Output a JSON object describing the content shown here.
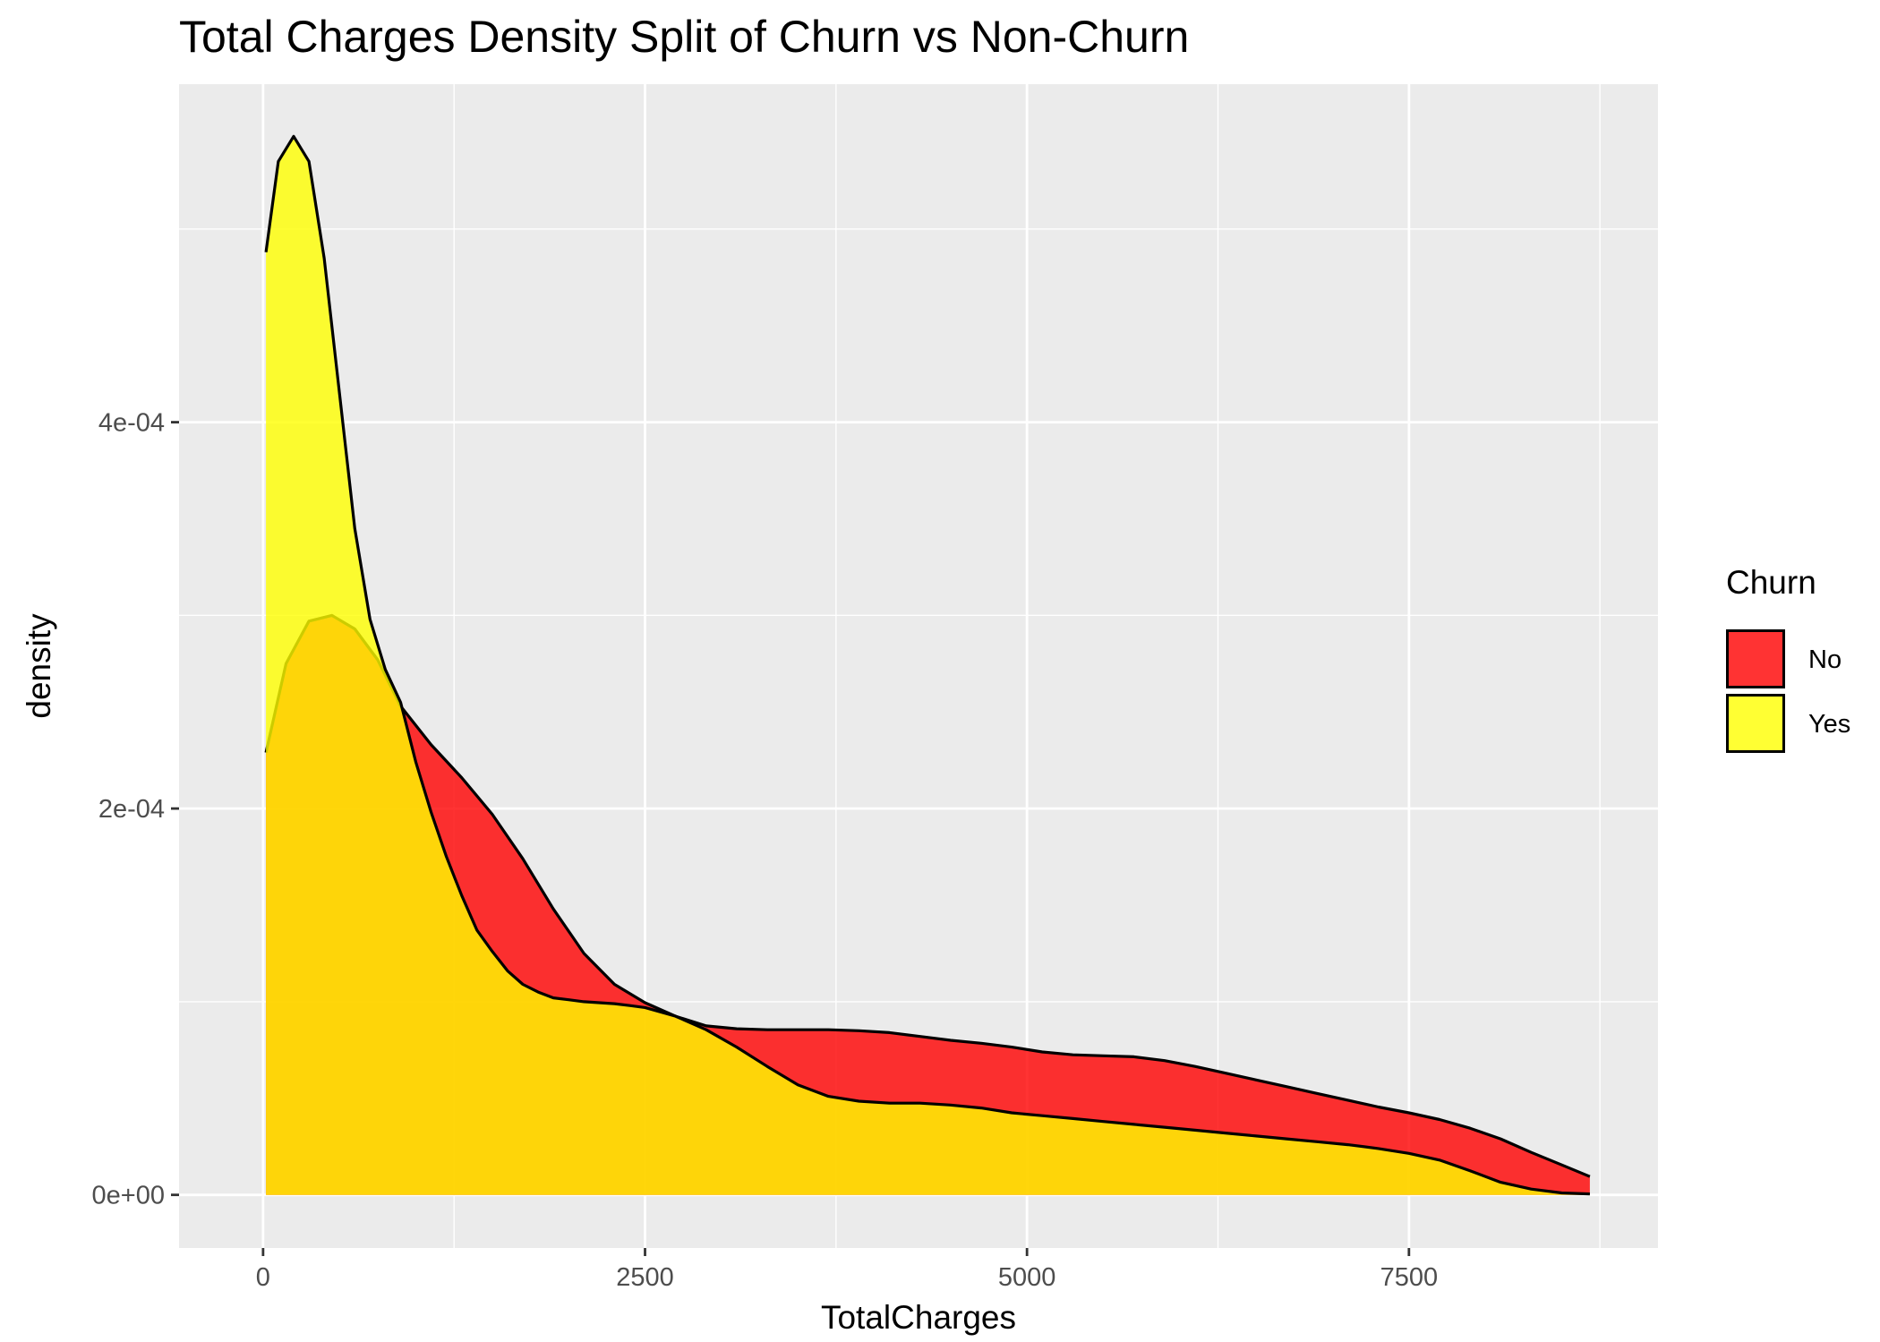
{
  "chart_data": {
    "type": "area",
    "title": "Total Charges Density Split of Churn vs Non-Churn",
    "xlabel": "TotalCharges",
    "ylabel": "density",
    "xlim": [
      -550,
      9130
    ],
    "ylim": [
      -2.75e-05,
      0.000575
    ],
    "x_ticks": [
      0,
      2500,
      5000,
      7500
    ],
    "x_tick_labels": [
      "0",
      "2500",
      "5000",
      "7500"
    ],
    "x_minor_ticks": [
      1250,
      3750,
      6250,
      8750
    ],
    "y_ticks": [
      0,
      0.0002,
      0.0004
    ],
    "y_tick_labels": [
      "0e+00",
      "2e-04",
      "4e-04"
    ],
    "y_minor_ticks": [
      0.0001,
      0.0003,
      0.0005
    ],
    "grid": true,
    "legend": {
      "title": "Churn",
      "position": "right"
    },
    "colors": {
      "panel": "#ebebeb",
      "grid": "#ffffff",
      "outline": "#000000"
    },
    "series": [
      {
        "name": "No",
        "color": "#ff0000",
        "opacity": 0.8,
        "x": [
          19,
          150,
          300,
          450,
          600,
          750,
          900,
          1100,
          1300,
          1500,
          1700,
          1900,
          2100,
          2300,
          2500,
          2700,
          2900,
          3100,
          3300,
          3500,
          3700,
          3900,
          4100,
          4300,
          4500,
          4700,
          4900,
          5100,
          5300,
          5500,
          5700,
          5900,
          6100,
          6300,
          6500,
          6700,
          6900,
          7100,
          7300,
          7500,
          7700,
          7900,
          8100,
          8300,
          8500,
          8684
        ],
        "values": [
          0.000229,
          0.000275,
          0.000297,
          0.0003,
          0.000293,
          0.000277,
          0.000253,
          0.000233,
          0.000216,
          0.000197,
          0.000174,
          0.000148,
          0.000125,
          0.000109,
          9.95e-05,
          9.25e-05,
          8.75e-05,
          8.6e-05,
          8.55e-05,
          8.55e-05,
          8.55e-05,
          8.5e-05,
          8.4e-05,
          8.2e-05,
          8e-05,
          7.85e-05,
          7.65e-05,
          7.4e-05,
          7.25e-05,
          7.2e-05,
          7.15e-05,
          6.95e-05,
          6.65e-05,
          6.3e-05,
          5.95e-05,
          5.6e-05,
          5.25e-05,
          4.9e-05,
          4.55e-05,
          4.25e-05,
          3.9e-05,
          3.45e-05,
          2.9e-05,
          2.2e-05,
          1.55e-05,
          9.5e-06
        ]
      },
      {
        "name": "Yes",
        "color": "#ffff00",
        "opacity": 0.8,
        "x": [
          19,
          100,
          200,
          300,
          400,
          500,
          600,
          700,
          800,
          900,
          1000,
          1100,
          1200,
          1300,
          1400,
          1500,
          1600,
          1700,
          1800,
          1900,
          2000,
          2100,
          2200,
          2300,
          2400,
          2500,
          2700,
          2900,
          3100,
          3300,
          3500,
          3700,
          3900,
          4100,
          4300,
          4500,
          4700,
          4900,
          5100,
          5300,
          5500,
          5700,
          5900,
          6100,
          6300,
          6500,
          6700,
          6900,
          7100,
          7300,
          7500,
          7700,
          7900,
          8100,
          8300,
          8500,
          8684
        ],
        "values": [
          0.000488,
          0.000535,
          0.000548,
          0.000535,
          0.000485,
          0.000415,
          0.000345,
          0.000298,
          0.000272,
          0.000255,
          0.000224,
          0.000198,
          0.000175,
          0.000155,
          0.000137,
          0.000126,
          0.000116,
          0.000109,
          0.000105,
          0.000102,
          0.000101,
          0.0001,
          9.95e-05,
          9.9e-05,
          9.8e-05,
          9.7e-05,
          9.25e-05,
          8.55e-05,
          7.65e-05,
          6.65e-05,
          5.7e-05,
          5.1e-05,
          4.85e-05,
          4.75e-05,
          4.75e-05,
          4.65e-05,
          4.5e-05,
          4.25e-05,
          4.1e-05,
          3.95e-05,
          3.8e-05,
          3.65e-05,
          3.5e-05,
          3.35e-05,
          3.2e-05,
          3.05e-05,
          2.9e-05,
          2.75e-05,
          2.6e-05,
          2.4e-05,
          2.15e-05,
          1.8e-05,
          1.25e-05,
          6.5e-06,
          3e-06,
          1e-06,
          5e-07
        ]
      }
    ]
  }
}
